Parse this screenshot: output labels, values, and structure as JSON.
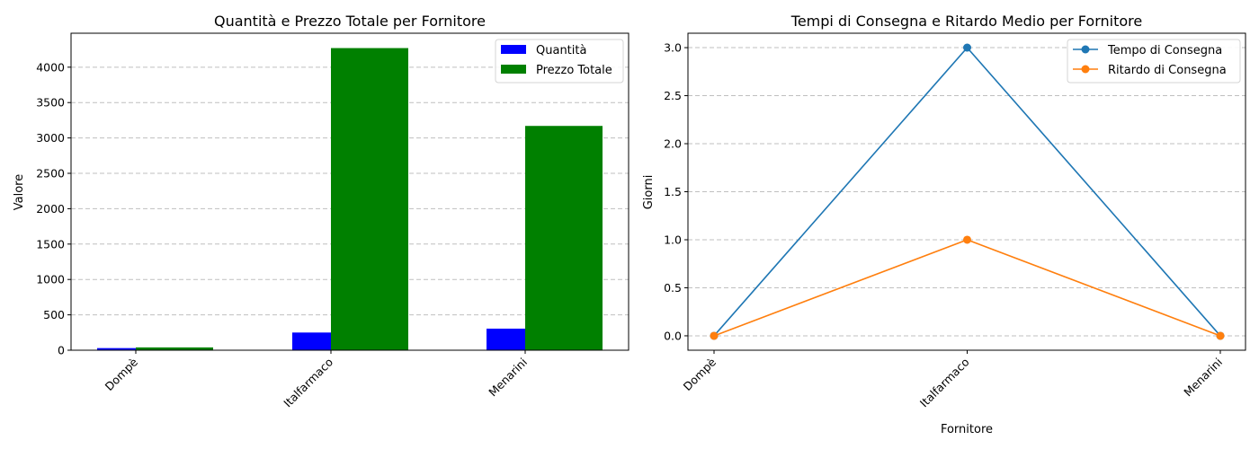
{
  "chart_data": [
    {
      "type": "bar",
      "title": "Quantità e Prezzo Totale per Fornitore",
      "xlabel": "",
      "ylabel": "Valore",
      "categories": [
        "Dompè",
        "Italfarmaco",
        "Menarini"
      ],
      "series": [
        {
          "name": "Quantità",
          "values": [
            30,
            250,
            305
          ],
          "color": "#0000ff"
        },
        {
          "name": "Prezzo Totale",
          "values": [
            40,
            4270,
            3170
          ],
          "color": "#008000"
        }
      ],
      "ylim": [
        0,
        4480
      ],
      "yticks": [
        0,
        500,
        1000,
        1500,
        2000,
        2500,
        3000,
        3500,
        4000
      ],
      "ytick_labels": [
        "0",
        "500",
        "1000",
        "1500",
        "2000",
        "2500",
        "3000",
        "3500",
        "4000"
      ],
      "grid": "y, dashed",
      "legend": "top-right"
    },
    {
      "type": "line",
      "title": "Tempi di Consegna e Ritardo Medio per Fornitore",
      "xlabel": "Fornitore",
      "ylabel": "Giorni",
      "categories": [
        "Dompè",
        "Italfarmaco",
        "Menarini"
      ],
      "series": [
        {
          "name": "Tempo di Consegna",
          "values": [
            0,
            3,
            0
          ],
          "color": "#1f77b4"
        },
        {
          "name": "Ritardo di Consegna",
          "values": [
            0,
            1,
            0
          ],
          "color": "#ff7f0e"
        }
      ],
      "ylim": [
        -0.15,
        3.15
      ],
      "yticks": [
        0,
        0.5,
        1,
        1.5,
        2,
        2.5,
        3
      ],
      "ytick_labels": [
        "0.0",
        "0.5",
        "1.0",
        "1.5",
        "2.0",
        "2.5",
        "3.0"
      ],
      "grid": "y, dashed",
      "legend": "top-right"
    }
  ]
}
